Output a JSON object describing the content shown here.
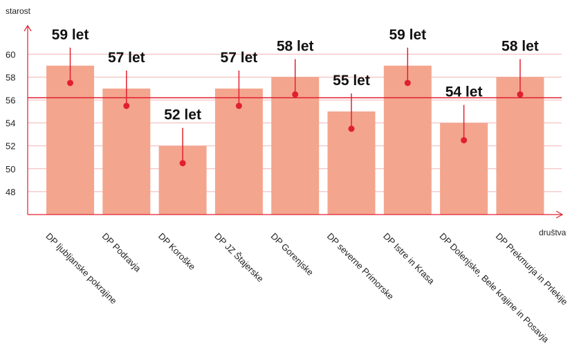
{
  "chart_data": {
    "type": "bar",
    "ylabel": "starost",
    "xlabel": "društva",
    "categories": [
      "DP ljubljanske pokrajine",
      "DP Podravja",
      "DP Koroške",
      "DP JZ Štajerske",
      "DP Gorenjske",
      "DP severne Primorske",
      "DP Istre in Krasa",
      "DP Dolenjske, Bele krajine in Posavja",
      "DP Prekmurja in Prlekije"
    ],
    "values": [
      59,
      57,
      52,
      57,
      58,
      55,
      59,
      54,
      58
    ],
    "data_labels": [
      "59 let",
      "57 let",
      "52 let",
      "57 let",
      "58 let",
      "55 let",
      "59 let",
      "54 let",
      "58 let"
    ],
    "reference_line": 56.2,
    "yticks": [
      48,
      50,
      52,
      54,
      56,
      58,
      60
    ],
    "ylim": [
      46,
      61
    ],
    "grid": true,
    "colors": {
      "bar": "#f4a58e",
      "accent": "#e02030",
      "grid": "#f2b3b3"
    }
  }
}
